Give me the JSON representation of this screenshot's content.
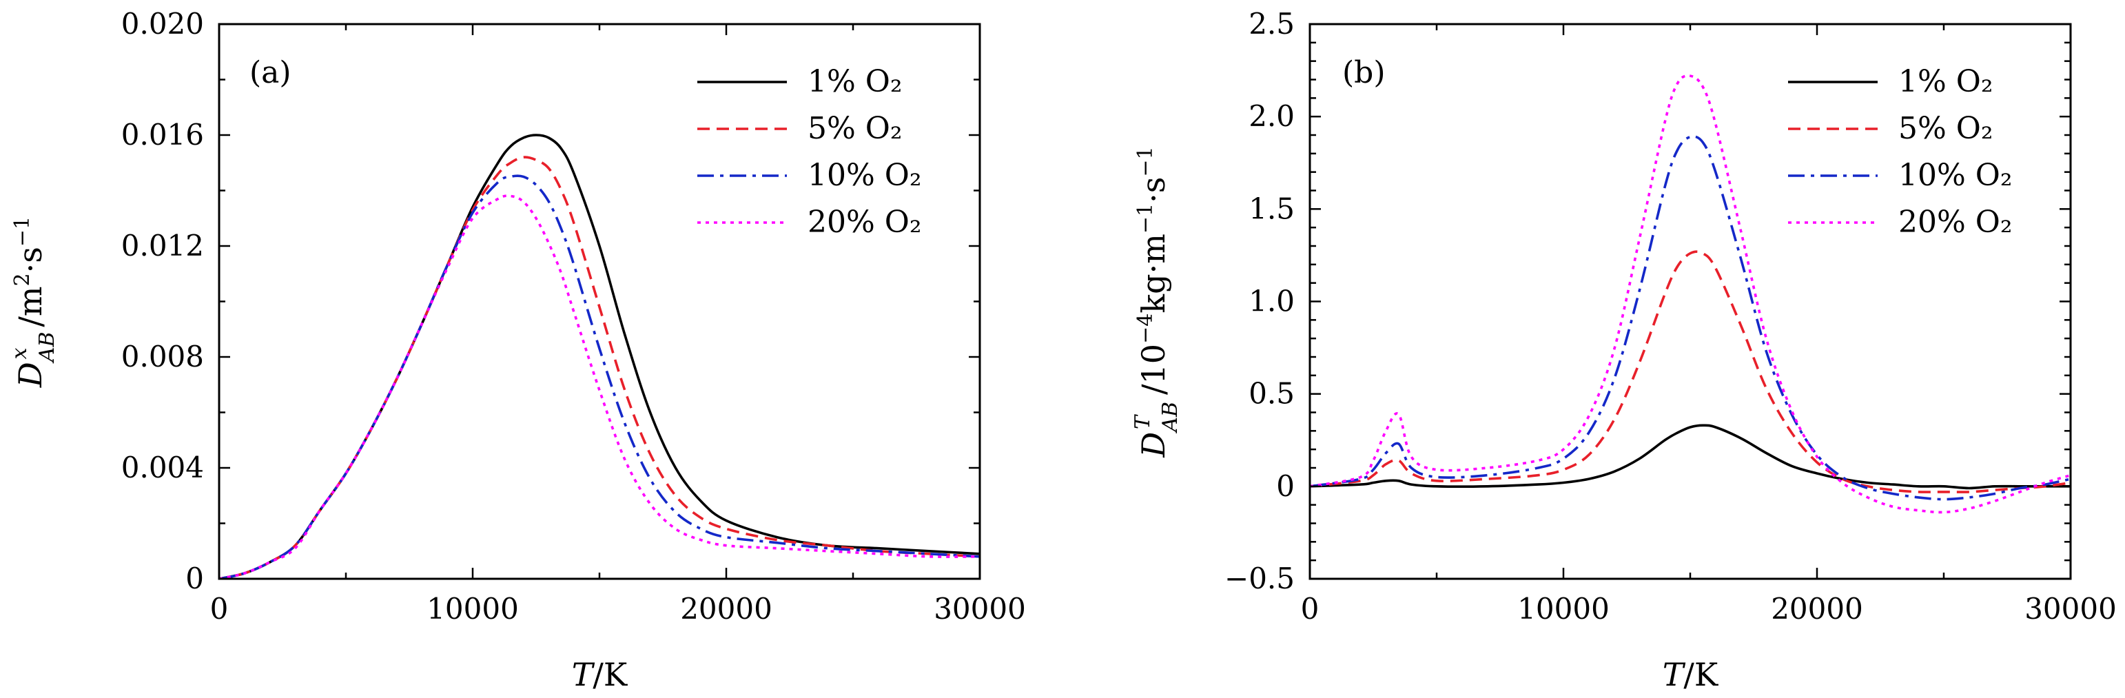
{
  "colors": {
    "1% O2": "#000000",
    "5% O2": "#e8202a",
    "10% O2": "#1428c8",
    "20% O2": "#ff00ff"
  },
  "chart_data": [
    {
      "type": "line",
      "panel_label": "(a)",
      "xlabel": "T/K",
      "ylabel": "D^x_AB/m²·s⁻¹",
      "xlim": [
        0,
        30000
      ],
      "ylim": [
        0,
        0.02
      ],
      "xticks": [
        "0",
        "10000",
        "20000",
        "30000"
      ],
      "yticks": [
        "0",
        "0.004",
        "0.008",
        "0.012",
        "0.016",
        "0.020"
      ],
      "grid": false,
      "legend_position": "top-right",
      "x": [
        0,
        1000,
        2000,
        3000,
        4000,
        5000,
        6000,
        7000,
        8000,
        9000,
        10000,
        11000,
        11500,
        12000,
        12500,
        13000,
        13500,
        14000,
        15000,
        16000,
        17000,
        18000,
        19000,
        20000,
        22000,
        24000,
        26000,
        28000,
        30000
      ],
      "series": [
        {
          "name": "1% O₂",
          "values": [
            0,
            0.0002,
            0.0006,
            0.0012,
            0.0025,
            0.0038,
            0.0054,
            0.0072,
            0.0092,
            0.0113,
            0.0134,
            0.015,
            0.0156,
            0.0159,
            0.016,
            0.0159,
            0.0155,
            0.0146,
            0.012,
            0.0088,
            0.006,
            0.004,
            0.0028,
            0.0021,
            0.0015,
            0.0012,
            0.0011,
            0.001,
            0.0009
          ]
        },
        {
          "name": "5% O₂",
          "values": [
            0,
            0.0002,
            0.0006,
            0.0012,
            0.0025,
            0.0038,
            0.0054,
            0.0072,
            0.0092,
            0.0113,
            0.0133,
            0.0146,
            0.015,
            0.0152,
            0.0151,
            0.0148,
            0.014,
            0.0128,
            0.0098,
            0.0068,
            0.0045,
            0.003,
            0.0022,
            0.0018,
            0.0014,
            0.0012,
            0.001,
            0.0009,
            0.0008
          ]
        },
        {
          "name": "10% O₂",
          "values": [
            0,
            0.0002,
            0.0006,
            0.0012,
            0.0025,
            0.0038,
            0.0054,
            0.0072,
            0.0092,
            0.0113,
            0.0132,
            0.0143,
            0.0145,
            0.0145,
            0.0142,
            0.0136,
            0.0126,
            0.0113,
            0.0083,
            0.0056,
            0.0036,
            0.0024,
            0.0018,
            0.0015,
            0.0013,
            0.0011,
            0.001,
            0.0009,
            0.0008
          ]
        },
        {
          "name": "20% O₂",
          "values": [
            0,
            0.0002,
            0.0006,
            0.0011,
            0.0025,
            0.0038,
            0.0054,
            0.0072,
            0.0092,
            0.0112,
            0.013,
            0.0137,
            0.0138,
            0.0136,
            0.013,
            0.0121,
            0.011,
            0.0096,
            0.0068,
            0.0043,
            0.0027,
            0.0018,
            0.0014,
            0.0012,
            0.0011,
            0.001,
            0.0009,
            0.0008,
            0.0008
          ]
        }
      ]
    },
    {
      "type": "line",
      "panel_label": "(b)",
      "xlabel": "T/K",
      "ylabel": "D^T_AB/10⁻⁴kg·m⁻¹·s⁻¹",
      "xlim": [
        0,
        30000
      ],
      "ylim": [
        -0.5,
        2.5
      ],
      "xticks": [
        "0",
        "10000",
        "20000",
        "30000"
      ],
      "yticks": [
        "−0.5",
        "0",
        "0.5",
        "1.0",
        "1.5",
        "2.0",
        "2.5"
      ],
      "grid": false,
      "legend_position": "top-right",
      "x": [
        0,
        2000,
        2500,
        3000,
        3500,
        4000,
        5000,
        7000,
        9000,
        10000,
        11000,
        12000,
        13000,
        14000,
        14500,
        15000,
        15500,
        16000,
        17000,
        18000,
        19000,
        20000,
        21000,
        22000,
        23000,
        24000,
        25000,
        26000,
        27000,
        28000,
        29000,
        30000
      ],
      "series": [
        {
          "name": "1% O₂",
          "values": [
            0,
            0.01,
            0.02,
            0.03,
            0.03,
            0.01,
            0.0,
            0.0,
            0.01,
            0.02,
            0.04,
            0.08,
            0.15,
            0.25,
            0.29,
            0.32,
            0.33,
            0.32,
            0.26,
            0.18,
            0.11,
            0.07,
            0.04,
            0.02,
            0.01,
            0.0,
            0.0,
            -0.01,
            0.0,
            0.0,
            0.0,
            0.0
          ]
        },
        {
          "name": "5% O₂",
          "values": [
            0,
            0.03,
            0.06,
            0.12,
            0.14,
            0.07,
            0.03,
            0.04,
            0.06,
            0.09,
            0.17,
            0.36,
            0.67,
            1.04,
            1.19,
            1.26,
            1.26,
            1.18,
            0.87,
            0.53,
            0.29,
            0.13,
            0.04,
            0.0,
            -0.02,
            -0.03,
            -0.03,
            -0.03,
            -0.02,
            -0.01,
            0.0,
            0.02
          ]
        },
        {
          "name": "10% O₂",
          "values": [
            0,
            0.04,
            0.09,
            0.18,
            0.23,
            0.1,
            0.05,
            0.06,
            0.1,
            0.15,
            0.29,
            0.58,
            1.06,
            1.62,
            1.82,
            1.89,
            1.86,
            1.7,
            1.23,
            0.73,
            0.39,
            0.17,
            0.05,
            -0.01,
            -0.04,
            -0.06,
            -0.07,
            -0.06,
            -0.04,
            -0.01,
            0.01,
            0.04
          ]
        },
        {
          "name": "20% O₂",
          "values": [
            0,
            0.05,
            0.14,
            0.3,
            0.39,
            0.16,
            0.09,
            0.1,
            0.14,
            0.2,
            0.38,
            0.74,
            1.34,
            1.97,
            2.18,
            2.22,
            2.16,
            1.96,
            1.38,
            0.8,
            0.41,
            0.16,
            0.02,
            -0.06,
            -0.11,
            -0.13,
            -0.14,
            -0.12,
            -0.08,
            -0.03,
            0.02,
            0.06
          ]
        }
      ]
    }
  ]
}
